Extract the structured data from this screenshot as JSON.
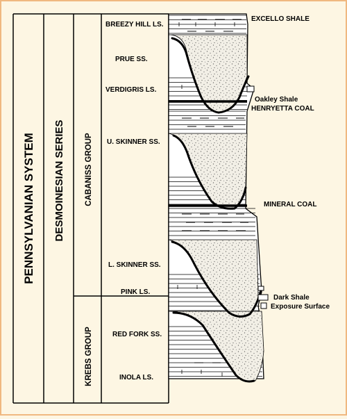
{
  "columns": {
    "system": "PENNSYLVANIAN SYSTEM",
    "series": "DESMOINESIAN SERIES",
    "upper_group": "CABANISS GROUP",
    "lower_group": "KREBS GROUP"
  },
  "units": {
    "breezy_hill": "BREEZY HILL LS.",
    "prue": "PRUE SS.",
    "verdigris": "VERDIGRIS LS.",
    "u_skinner": "U. SKINNER SS.",
    "l_skinner": "L. SKINNER SS.",
    "pink": "PINK LS.",
    "red_fork": "RED FORK SS.",
    "inola": "INOLA LS."
  },
  "side_labels": {
    "excello": "EXCELLO SHALE",
    "oakley": "Oakley Shale",
    "henryetta": "HENRYETTA COAL",
    "mineral": "MINERAL COAL",
    "dark_shale": "Dark Shale",
    "exposure": "Exposure Surface"
  },
  "colors": {
    "background": "#fdf6e3",
    "frame": "#f0b880",
    "ink": "#000000",
    "sand_fill": "#f2efe6"
  }
}
